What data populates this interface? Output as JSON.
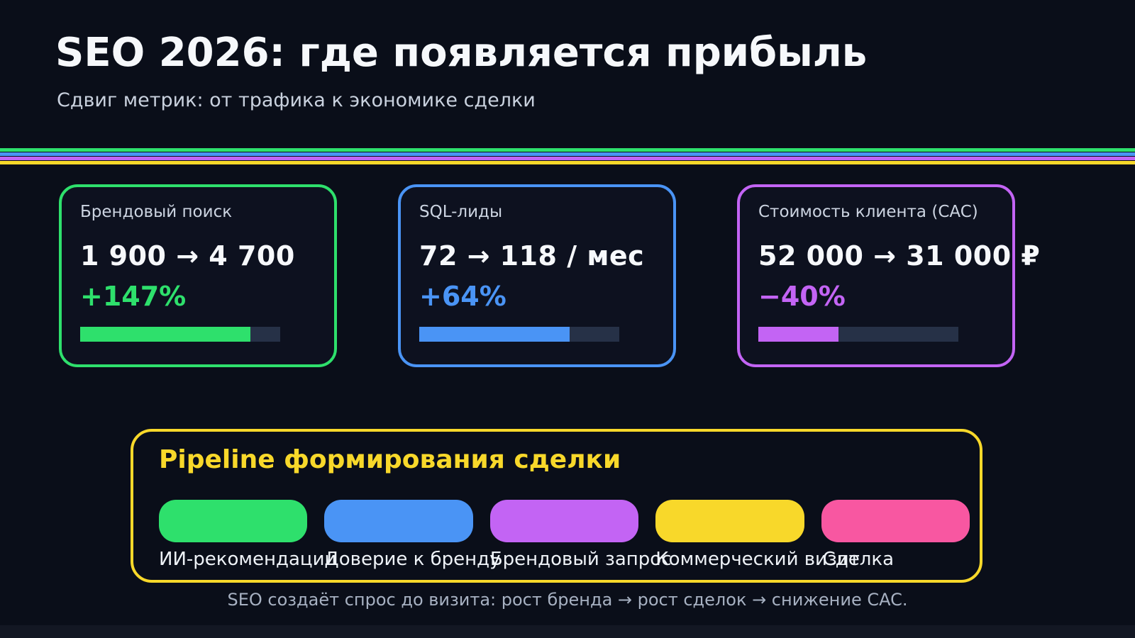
{
  "page": {
    "title": "SEO 2026: где появляется прибыль",
    "subtitle": "Сдвиг метрик: от трафика к экономике сделки",
    "footer": "SEO создаёт спрос до визита: рост бренда → рост сделок → снижение CAC."
  },
  "colors": {
    "bg": "#0a0e19",
    "card-bg": "#0d111f",
    "green": "#2ee06c",
    "blue": "#4a94f5",
    "purple": "#c364f4",
    "yellow": "#f8d82a",
    "pink": "#f857a1",
    "track": "#263147"
  },
  "divider_stripe_colors": [
    "#2ee06c",
    "#4a94f5",
    "#c364f4",
    "#f8d82a"
  ],
  "metric_cards": [
    {
      "label": "Брендовый поиск",
      "value": "1 900 → 4 700",
      "change": "+147%",
      "progress_pct": 85,
      "accent": "#2ee06c"
    },
    {
      "label": "SQL-лиды",
      "value": "72 → 118 / мес",
      "change": "+64%",
      "progress_pct": 75,
      "accent": "#4a94f5"
    },
    {
      "label": "Стоимость клиента (CAC)",
      "value": "52 000 → 31 000 ₽",
      "change": "−40%",
      "progress_pct": 40,
      "accent": "#c364f4"
    }
  ],
  "pipeline": {
    "title": "Pipeline формирования сделки",
    "stages": [
      {
        "label": "ИИ-рекомендации",
        "color": "#2ee06c"
      },
      {
        "label": "Доверие к бренду",
        "color": "#4a94f5"
      },
      {
        "label": "Брендовый запрос",
        "color": "#c364f4"
      },
      {
        "label": "Коммерческий визит",
        "color": "#f8d82a"
      },
      {
        "label": "Сделка",
        "color": "#f857a1"
      }
    ]
  },
  "chart_data": {
    "type": "bar",
    "title": "SEO 2026: где появляется прибыль",
    "subtitle": "Сдвиг метрик: от трафика к экономике сделки",
    "categories": [
      "Брендовый поиск",
      "SQL-лиды",
      "Стоимость клиента (CAC)"
    ],
    "series": [
      {
        "name": "progress_fill_fraction",
        "values": [
          0.85,
          0.75,
          0.4
        ]
      }
    ],
    "annotations": [
      "1 900 → 4 700 (+147%)",
      "72 → 118 / мес (+64%)",
      "52 000 → 31 000 ₽ (−40%)"
    ],
    "pipeline_stages": [
      "ИИ-рекомендации",
      "Доверие к бренду",
      "Брендовый запрос",
      "Коммерческий визит",
      "Сделка"
    ],
    "legend_position": "none",
    "grid": false
  }
}
